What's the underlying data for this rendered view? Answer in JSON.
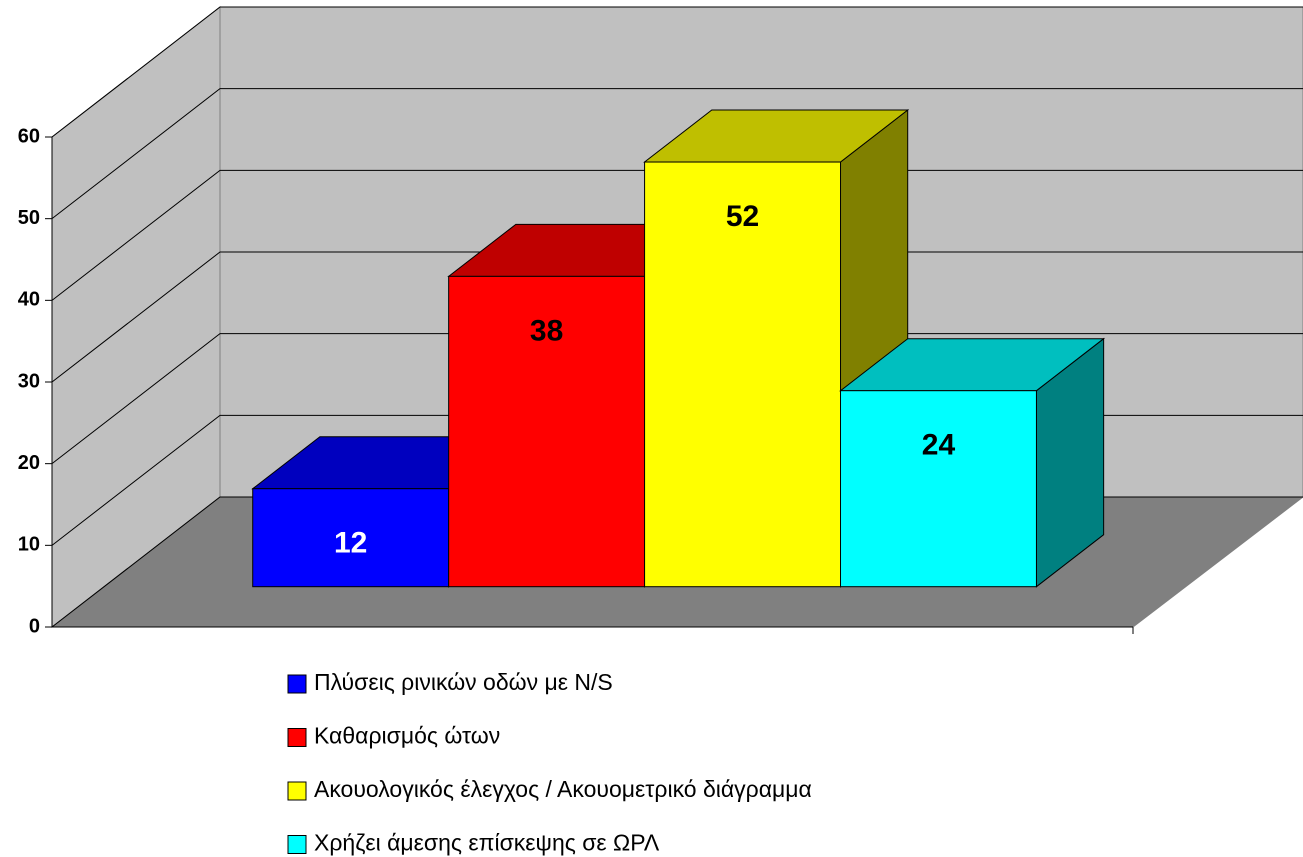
{
  "chart_data": {
    "type": "bar3d",
    "categories": [
      null
    ],
    "series": [
      {
        "name": "Πλύσεις ρινικών οδών με N/S",
        "color": "#0000ff",
        "label_color": "#ffffff",
        "values": [
          12
        ]
      },
      {
        "name": "Καθαρισμός ώτων",
        "color": "#ff0000",
        "label_color": "#000000",
        "values": [
          38
        ]
      },
      {
        "name": "Ακουολογικός έλεγχος / Ακουομετρικό διάγραμμα",
        "color": "#ffff00",
        "label_color": "#000000",
        "values": [
          52
        ]
      },
      {
        "name": "Χρήζει άμεσης επίσκεψης σε ΩΡΛ",
        "color": "#00ffff",
        "label_color": "#000000",
        "values": [
          24
        ]
      }
    ],
    "ylim": [
      0,
      60
    ],
    "yticks": [
      0,
      10,
      20,
      30,
      40,
      50,
      60
    ],
    "grid": true,
    "legend": "bottom"
  }
}
